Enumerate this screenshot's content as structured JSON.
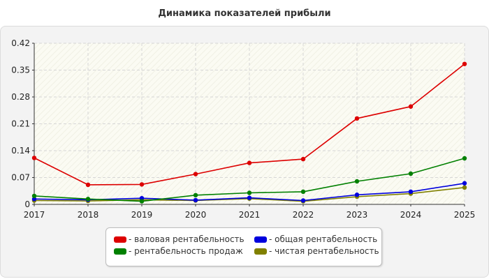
{
  "chart_title": "Динамика показателей прибыли",
  "chart_data": {
    "type": "line",
    "title": "Динамика показателей прибыли",
    "x": [
      "2017",
      "2018",
      "2019",
      "2020",
      "2021",
      "2022",
      "2023",
      "2024",
      "2025"
    ],
    "y_ticks": [
      "0",
      "0.07",
      "0.14",
      "0.21",
      "0.28",
      "0.35",
      "0.42"
    ],
    "ylim": [
      0,
      0.42
    ],
    "grid": true,
    "legend_position": "bottom",
    "series": [
      {
        "name": "- валовая рентабельность",
        "color": "#dd0000",
        "values": [
          0.121,
          0.051,
          0.052,
          0.079,
          0.108,
          0.118,
          0.224,
          0.255,
          0.366
        ]
      },
      {
        "name": "- общая рентабельность",
        "color": "#0000dd",
        "values": [
          0.014,
          0.012,
          0.016,
          0.011,
          0.017,
          0.01,
          0.025,
          0.033,
          0.055
        ]
      },
      {
        "name": "- рентабельность продаж",
        "color": "#008000",
        "values": [
          0.022,
          0.014,
          0.008,
          0.024,
          0.03,
          0.033,
          0.06,
          0.08,
          0.12
        ]
      },
      {
        "name": "- чистая рентабельность",
        "color": "#808000",
        "values": [
          0.01,
          0.009,
          0.012,
          0.01,
          0.015,
          0.008,
          0.02,
          0.028,
          0.044
        ]
      }
    ]
  }
}
